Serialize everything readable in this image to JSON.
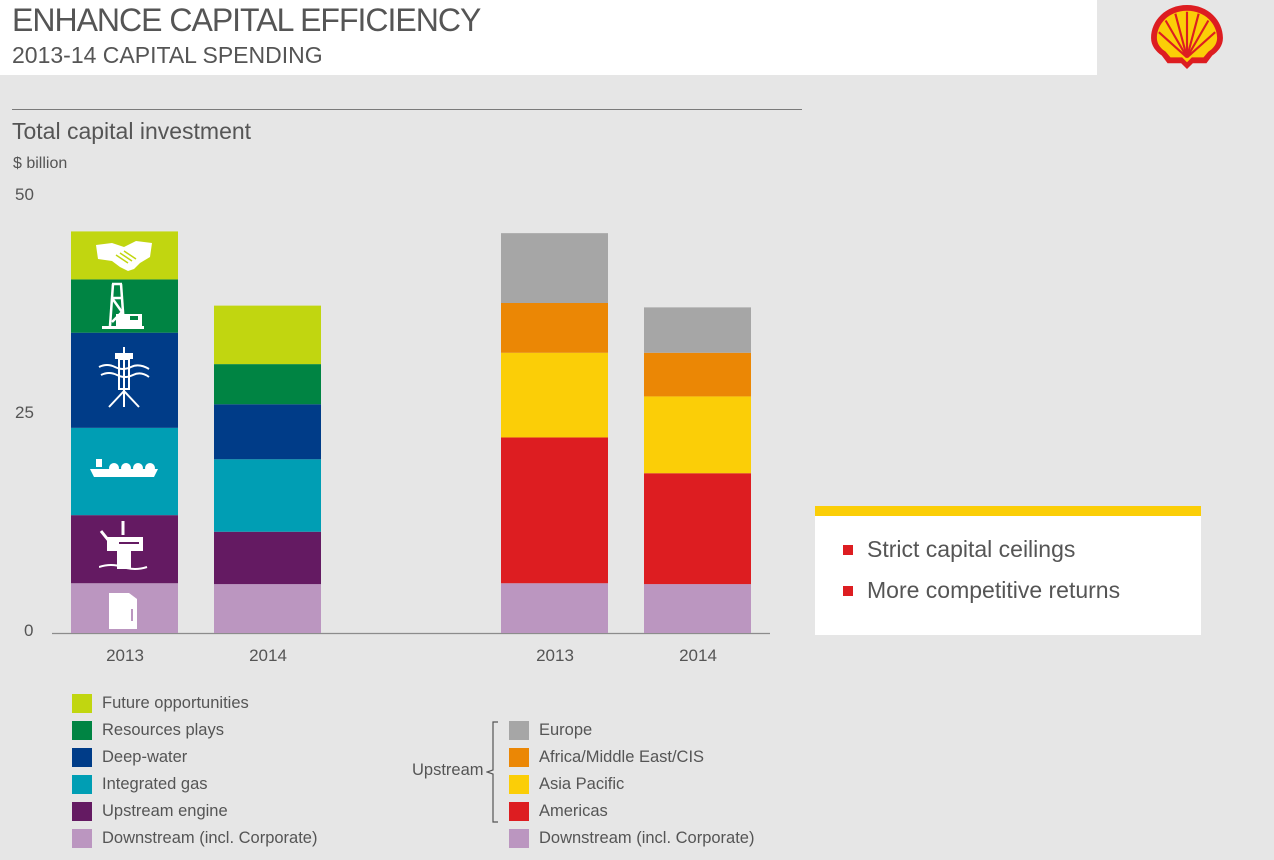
{
  "header": {
    "title": "ENHANCE CAPITAL EFFICIENCY",
    "subtitle": "2013-14 CAPITAL SPENDING",
    "logo": "shell-pecten-logo"
  },
  "callout": {
    "accent_color": "#fbce07",
    "bullet_color": "#dd1d21",
    "bullets": [
      "Strict capital ceilings",
      "More competitive returns"
    ]
  },
  "chart_data": [
    {
      "type": "bar",
      "stacked": true,
      "title": "Total capital investment",
      "ylabel": "$ billion",
      "xlabel": "",
      "ylim": [
        0,
        50
      ],
      "yticks": [
        0,
        25,
        50
      ],
      "categories": [
        "2013",
        "2014"
      ],
      "series": [
        {
          "name": "Downstream (incl. Corporate)",
          "color": "#bb96c0",
          "icon": "oil-can-icon",
          "values": [
            5.7,
            5.6
          ]
        },
        {
          "name": "Upstream engine",
          "color": "#641a62",
          "icon": "offshore-platform-icon",
          "values": [
            7.8,
            6.0
          ]
        },
        {
          "name": "Integrated gas",
          "color": "#009eb4",
          "icon": "lng-tanker-icon",
          "values": [
            10.0,
            8.3
          ]
        },
        {
          "name": "Deep-water",
          "color": "#003c88",
          "icon": "deepwater-rig-icon",
          "values": [
            10.9,
            6.3
          ]
        },
        {
          "name": "Resources plays",
          "color": "#008443",
          "icon": "drilling-rig-icon",
          "values": [
            6.1,
            4.6
          ]
        },
        {
          "name": "Future opportunities",
          "color": "#c1d610",
          "icon": "handshake-icon",
          "values": [
            5.5,
            6.7
          ]
        }
      ],
      "legend_order": [
        "Future opportunities",
        "Resources plays",
        "Deep-water",
        "Integrated gas",
        "Upstream engine",
        "Downstream (incl. Corporate)"
      ],
      "legend_placement": "bottom-left"
    },
    {
      "type": "bar",
      "stacked": true,
      "title": "Total capital investment",
      "ylabel": "$ billion",
      "ylim": [
        0,
        50
      ],
      "categories": [
        "2013",
        "2014"
      ],
      "series": [
        {
          "name": "Downstream (incl. Corporate)",
          "color": "#bb96c0",
          "values": [
            5.7,
            5.6
          ]
        },
        {
          "name": "Americas",
          "color": "#dd1d21",
          "values": [
            16.7,
            12.7
          ]
        },
        {
          "name": "Asia Pacific",
          "color": "#fbce07",
          "values": [
            9.7,
            8.8
          ]
        },
        {
          "name": "Africa/Middle East/CIS",
          "color": "#eb8705",
          "values": [
            5.7,
            5.0
          ]
        },
        {
          "name": "Europe",
          "color": "#a6a6a6",
          "values": [
            8.0,
            5.2
          ]
        }
      ],
      "legend_order": [
        "Europe",
        "Africa/Middle East/CIS",
        "Asia Pacific",
        "Americas",
        "Downstream (incl. Corporate)"
      ],
      "legend_group": {
        "label": "Upstream",
        "members": [
          "Europe",
          "Africa/Middle East/CIS",
          "Asia Pacific",
          "Americas"
        ]
      },
      "legend_placement": "bottom-center"
    }
  ]
}
